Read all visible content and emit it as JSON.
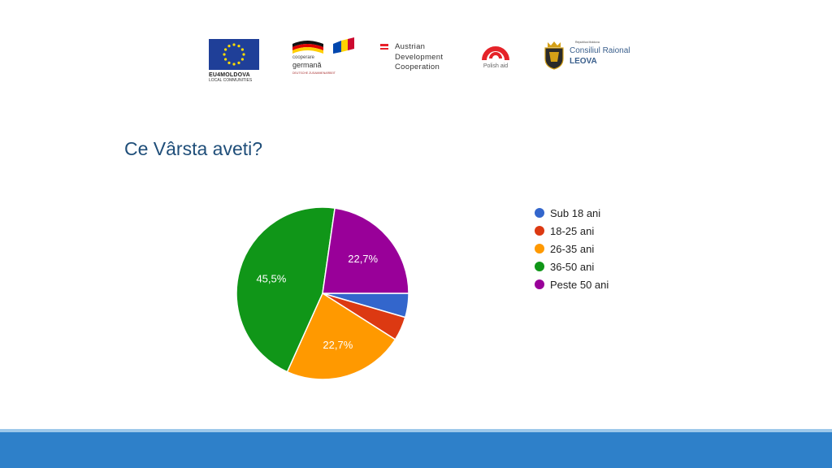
{
  "logos": {
    "eu": {
      "name": "EU4MOLDOVA",
      "sub": "LOCAL COMMUNITIES"
    },
    "german": {
      "line1": "cooperare",
      "line2": "germană",
      "line3": "DEUTSCHE ZUSAMMENARBEIT"
    },
    "austrian": {
      "line1": "Austrian",
      "line2": "Development",
      "line3": "Cooperation"
    },
    "polish": {
      "label": "Polish aid"
    },
    "leova": {
      "sup": "Republica Moldova",
      "line1": "Consiliul Raional",
      "line2": "LEOVA"
    }
  },
  "colors": {
    "title": "#1f4e79",
    "band": "#2e80c9",
    "eu_blue": "#1f3f98",
    "polish_red": "#e52329"
  },
  "chart_data": {
    "type": "pie",
    "title": "Ce Vârsta aveti?",
    "legend_position": "right",
    "series": [
      {
        "name": "Sub 18 ani",
        "value": 4.5,
        "color": "#3366cc"
      },
      {
        "name": "18-25 ani",
        "value": 4.5,
        "color": "#dc3912"
      },
      {
        "name": "26-35 ani",
        "value": 22.7,
        "color": "#ff9900"
      },
      {
        "name": "36-50 ani",
        "value": 45.5,
        "color": "#109618"
      },
      {
        "name": "Peste 50 ani",
        "value": 22.7,
        "color": "#990099"
      }
    ],
    "data_labels": [
      {
        "series": "26-35 ani",
        "text": "22,7%"
      },
      {
        "series": "36-50 ani",
        "text": "45,5%"
      },
      {
        "series": "Peste 50 ani",
        "text": "22,7%"
      }
    ]
  }
}
